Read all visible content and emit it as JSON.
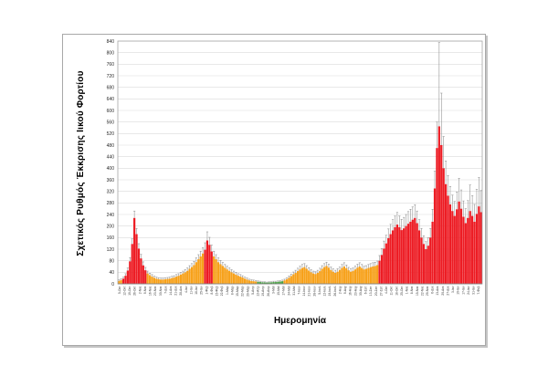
{
  "figure": {
    "background": "#ffffff",
    "frame_color": "#a8a8a8",
    "plot_border_color": "#a6a6a6",
    "gridline_color": "#d9d9d9",
    "tick_text_color": "#262626"
  },
  "chart_data": {
    "type": "bar",
    "title": "",
    "xlabel": "Ημερομηνία",
    "ylabel": "Σχετικός Ρυθμός Έκκρισης Ιικού Φορτίου",
    "ylim": [
      0,
      840
    ],
    "y_tick_step": 40,
    "grid": "horizontal",
    "legend": "none",
    "error_bars": "plus-direction with caps",
    "series_colors": {
      "r": "#ed1c24",
      "o": "#f7a11a",
      "g": "#44a13f"
    },
    "error_bar_color": "#8c8c8c",
    "x_tick_labels": [
      "5-Οκτ",
      "12-Οκτ",
      "19-Οκτ",
      "26-Οκτ",
      "2-Νοε",
      "9-Νοε",
      "16-Νοε",
      "23-Νοε",
      "30-Νοε",
      "7-Δεκ",
      "14-Δεκ",
      "21-Δεκ",
      "28-Δεκ",
      "4-Ιαν",
      "11-Ιαν",
      "18-Ιαν",
      "25-Ιαν",
      "1-Φεβ",
      "8-Φεβ",
      "15-Φεβ",
      "22-Φεβ",
      "1-Μαρ",
      "8-Μαρ",
      "15-Μαρ",
      "22-Μαρ",
      "29-Μαρ",
      "5-Απρ",
      "12-Απρ",
      "19-Απρ",
      "26-Απρ",
      "3-Μαϊ",
      "10-Μαϊ",
      "17-Μαϊ",
      "24-Μαϊ",
      "31-Μαϊ",
      "7-Ιουν",
      "14-Ιουν",
      "21-Ιουν",
      "28-Ιουν",
      "5-Ιουλ",
      "12-Ιουλ",
      "19-Ιουλ",
      "26-Ιουλ",
      "2-Αυγ",
      "9-Αυγ",
      "16-Αυγ",
      "23-Αυγ",
      "30-Αυγ",
      "6-Σεπ",
      "13-Σεπ",
      "20-Σεπ",
      "27-Σεπ",
      "4-Οκτ",
      "11-Οκτ",
      "18-Οκτ",
      "25-Οκτ",
      "1-Νοε",
      "8-Νοε",
      "15-Νοε",
      "22-Νοε",
      "29-Νοε",
      "6-Δεκ",
      "13-Δεκ",
      "20-Δεκ",
      "27-Δεκ",
      "3-Ιαν",
      "10-Ιαν",
      "17-Ιαν",
      "24-Ιαν",
      "31-Ιαν",
      "7-Φεβ"
    ],
    "points": [
      [
        10,
        4,
        "o"
      ],
      [
        13,
        4,
        "o"
      ],
      [
        18,
        5,
        "r"
      ],
      [
        28,
        7,
        "r"
      ],
      [
        46,
        9,
        "r"
      ],
      [
        78,
        13,
        "r"
      ],
      [
        138,
        18,
        "r"
      ],
      [
        228,
        24,
        "r"
      ],
      [
        172,
        20,
        "r"
      ],
      [
        122,
        17,
        "r"
      ],
      [
        88,
        14,
        "r"
      ],
      [
        64,
        12,
        "r"
      ],
      [
        47,
        10,
        "r"
      ],
      [
        36,
        8,
        "o"
      ],
      [
        30,
        7,
        "o"
      ],
      [
        25,
        7,
        "o"
      ],
      [
        21,
        6,
        "o"
      ],
      [
        18,
        5,
        "o"
      ],
      [
        16,
        5,
        "o"
      ],
      [
        15,
        5,
        "o"
      ],
      [
        15,
        5,
        "o"
      ],
      [
        16,
        5,
        "o"
      ],
      [
        17,
        5,
        "o"
      ],
      [
        18,
        5,
        "o"
      ],
      [
        20,
        6,
        "o"
      ],
      [
        22,
        6,
        "o"
      ],
      [
        25,
        7,
        "o"
      ],
      [
        28,
        7,
        "o"
      ],
      [
        32,
        8,
        "o"
      ],
      [
        36,
        8,
        "o"
      ],
      [
        40,
        9,
        "o"
      ],
      [
        45,
        10,
        "o"
      ],
      [
        52,
        11,
        "o"
      ],
      [
        58,
        12,
        "o"
      ],
      [
        65,
        13,
        "o"
      ],
      [
        75,
        15,
        "o"
      ],
      [
        85,
        16,
        "o"
      ],
      [
        95,
        18,
        "o"
      ],
      [
        105,
        20,
        "o"
      ],
      [
        118,
        24,
        "r"
      ],
      [
        150,
        30,
        "r"
      ],
      [
        135,
        26,
        "r"
      ],
      [
        112,
        22,
        "r"
      ],
      [
        95,
        18,
        "o"
      ],
      [
        85,
        16,
        "o"
      ],
      [
        75,
        15,
        "o"
      ],
      [
        68,
        13,
        "o"
      ],
      [
        62,
        12,
        "o"
      ],
      [
        56,
        11,
        "o"
      ],
      [
        50,
        11,
        "o"
      ],
      [
        45,
        10,
        "o"
      ],
      [
        40,
        9,
        "o"
      ],
      [
        36,
        8,
        "o"
      ],
      [
        32,
        8,
        "o"
      ],
      [
        28,
        7,
        "o"
      ],
      [
        25,
        7,
        "o"
      ],
      [
        22,
        6,
        "o"
      ],
      [
        18,
        5,
        "o"
      ],
      [
        15,
        5,
        "o"
      ],
      [
        12,
        4,
        "o"
      ],
      [
        10,
        4,
        "o"
      ],
      [
        9,
        4,
        "o"
      ],
      [
        8,
        3,
        "o"
      ],
      [
        7,
        3,
        "g"
      ],
      [
        6,
        3,
        "g"
      ],
      [
        5,
        2,
        "g"
      ],
      [
        5,
        2,
        "g"
      ],
      [
        4,
        2,
        "g"
      ],
      [
        5,
        2,
        "g"
      ],
      [
        5,
        2,
        "g"
      ],
      [
        6,
        3,
        "g"
      ],
      [
        6,
        3,
        "g"
      ],
      [
        7,
        3,
        "g"
      ],
      [
        8,
        3,
        "g"
      ],
      [
        9,
        4,
        "g"
      ],
      [
        12,
        4,
        "o"
      ],
      [
        16,
        5,
        "o"
      ],
      [
        21,
        6,
        "o"
      ],
      [
        27,
        7,
        "o"
      ],
      [
        33,
        8,
        "o"
      ],
      [
        38,
        9,
        "o"
      ],
      [
        44,
        10,
        "o"
      ],
      [
        50,
        11,
        "o"
      ],
      [
        55,
        12,
        "o"
      ],
      [
        58,
        12,
        "o"
      ],
      [
        52,
        11,
        "o"
      ],
      [
        46,
        10,
        "o"
      ],
      [
        40,
        9,
        "o"
      ],
      [
        36,
        8,
        "o"
      ],
      [
        34,
        8,
        "o"
      ],
      [
        38,
        9,
        "o"
      ],
      [
        44,
        10,
        "o"
      ],
      [
        52,
        11,
        "o"
      ],
      [
        58,
        12,
        "o"
      ],
      [
        62,
        13,
        "o"
      ],
      [
        56,
        12,
        "o"
      ],
      [
        48,
        10,
        "o"
      ],
      [
        42,
        10,
        "o"
      ],
      [
        38,
        9,
        "o"
      ],
      [
        42,
        10,
        "o"
      ],
      [
        48,
        10,
        "o"
      ],
      [
        55,
        12,
        "o"
      ],
      [
        60,
        13,
        "o"
      ],
      [
        54,
        11,
        "o"
      ],
      [
        47,
        10,
        "o"
      ],
      [
        42,
        10,
        "o"
      ],
      [
        45,
        10,
        "o"
      ],
      [
        50,
        11,
        "o"
      ],
      [
        56,
        12,
        "o"
      ],
      [
        60,
        13,
        "o"
      ],
      [
        55,
        12,
        "o"
      ],
      [
        50,
        11,
        "o"
      ],
      [
        52,
        11,
        "o"
      ],
      [
        55,
        12,
        "o"
      ],
      [
        58,
        12,
        "o"
      ],
      [
        60,
        13,
        "o"
      ],
      [
        62,
        13,
        "o"
      ],
      [
        65,
        14,
        "o"
      ],
      [
        80,
        18,
        "r"
      ],
      [
        100,
        22,
        "r"
      ],
      [
        122,
        26,
        "r"
      ],
      [
        140,
        28,
        "r"
      ],
      [
        158,
        32,
        "r"
      ],
      [
        172,
        34,
        "r"
      ],
      [
        185,
        37,
        "r"
      ],
      [
        196,
        39,
        "r"
      ],
      [
        205,
        42,
        "r"
      ],
      [
        196,
        39,
        "r"
      ],
      [
        186,
        37,
        "r"
      ],
      [
        192,
        38,
        "r"
      ],
      [
        200,
        40,
        "r"
      ],
      [
        208,
        42,
        "r"
      ],
      [
        215,
        43,
        "r"
      ],
      [
        222,
        44,
        "r"
      ],
      [
        228,
        46,
        "r"
      ],
      [
        210,
        42,
        "r"
      ],
      [
        185,
        37,
        "r"
      ],
      [
        160,
        32,
        "r"
      ],
      [
        138,
        28,
        "r"
      ],
      [
        120,
        26,
        "r"
      ],
      [
        132,
        27,
        "r"
      ],
      [
        160,
        32,
        "r"
      ],
      [
        215,
        43,
        "r"
      ],
      [
        330,
        60,
        "r"
      ],
      [
        470,
        90,
        "r"
      ],
      [
        545,
        290,
        "r"
      ],
      [
        480,
        180,
        "r"
      ],
      [
        400,
        110,
        "r"
      ],
      [
        345,
        80,
        "r"
      ],
      [
        305,
        70,
        "r"
      ],
      [
        275,
        62,
        "r"
      ],
      [
        252,
        55,
        "r"
      ],
      [
        235,
        50,
        "r"
      ],
      [
        258,
        60,
        "r"
      ],
      [
        285,
        80,
        "r"
      ],
      [
        260,
        65,
        "r"
      ],
      [
        232,
        55,
        "r"
      ],
      [
        210,
        50,
        "r"
      ],
      [
        228,
        60,
        "r"
      ],
      [
        252,
        90,
        "r"
      ],
      [
        235,
        70,
        "r"
      ],
      [
        215,
        60,
        "r"
      ],
      [
        242,
        85,
        "r"
      ],
      [
        268,
        100,
        "r"
      ],
      [
        248,
        75,
        "r"
      ]
    ]
  }
}
